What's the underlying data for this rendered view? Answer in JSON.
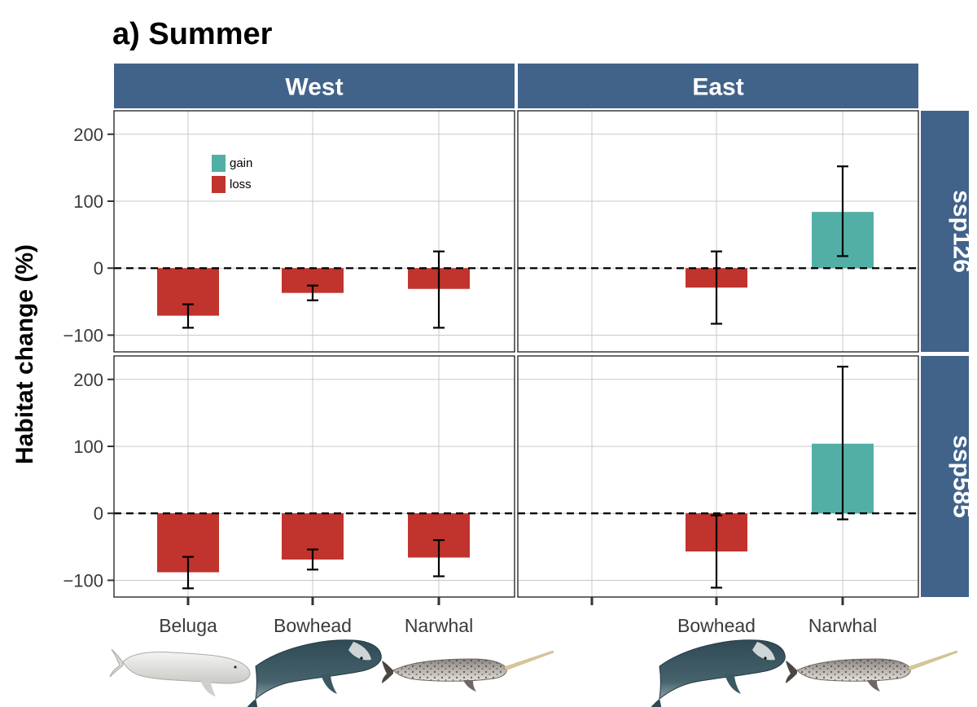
{
  "title": "a) Summer",
  "chart_data": {
    "type": "bar",
    "title": "a) Summer",
    "ylabel": "Habitat change (%)",
    "xlabel": "",
    "ylim": [
      -125,
      235
    ],
    "yticks": [
      -100,
      0,
      100,
      200
    ],
    "ytick_labels": [
      "−100",
      "0",
      "100",
      "200"
    ],
    "grid": true,
    "reference_line": 0,
    "legend": {
      "placement": "top-left inside first panel",
      "entries": [
        {
          "key": "gain",
          "label": "gain",
          "color": "#52afa6"
        },
        {
          "key": "loss",
          "label": "loss",
          "color": "#c0342d"
        }
      ]
    },
    "strip_color": "#41638a",
    "facets": [
      {
        "region": "West",
        "scenario": "ssp126",
        "categories": [
          "Beluga",
          "Bowhead",
          "Narwhal"
        ],
        "values": [
          -71,
          -37,
          -31
        ],
        "error_low": [
          -89,
          -48,
          -89
        ],
        "error_high": [
          -54,
          -26,
          25
        ],
        "fill": [
          "loss",
          "loss",
          "loss"
        ]
      },
      {
        "region": "East",
        "scenario": "ssp126",
        "categories": [
          "",
          "Bowhead",
          "Narwhal"
        ],
        "values": [
          null,
          -29,
          84
        ],
        "error_low": [
          null,
          -83,
          18
        ],
        "error_high": [
          null,
          25,
          152
        ],
        "fill": [
          null,
          "loss",
          "gain"
        ]
      },
      {
        "region": "West",
        "scenario": "ssp585",
        "categories": [
          "Beluga",
          "Bowhead",
          "Narwhal"
        ],
        "values": [
          -88,
          -69,
          -66
        ],
        "error_low": [
          -112,
          -84,
          -94
        ],
        "error_high": [
          -65,
          -54,
          -40
        ],
        "fill": [
          "loss",
          "loss",
          "loss"
        ]
      },
      {
        "region": "East",
        "scenario": "ssp585",
        "categories": [
          "",
          "Bowhead",
          "Narwhal"
        ],
        "values": [
          null,
          -57,
          104
        ],
        "error_low": [
          null,
          -111,
          -9
        ],
        "error_high": [
          null,
          -3,
          219
        ],
        "fill": [
          null,
          "loss",
          "gain"
        ]
      }
    ],
    "columns": [
      "West",
      "East"
    ],
    "rows": [
      "ssp126",
      "ssp585"
    ],
    "x_axis_labels": {
      "West": [
        "Beluga",
        "Bowhead",
        "Narwhal"
      ],
      "East": [
        "",
        "Bowhead",
        "Narwhal"
      ]
    },
    "illustrations": {
      "West": [
        "beluga-whale",
        "bowhead-whale",
        "narwhal"
      ],
      "East": [
        "",
        "bowhead-whale",
        "narwhal"
      ]
    }
  }
}
